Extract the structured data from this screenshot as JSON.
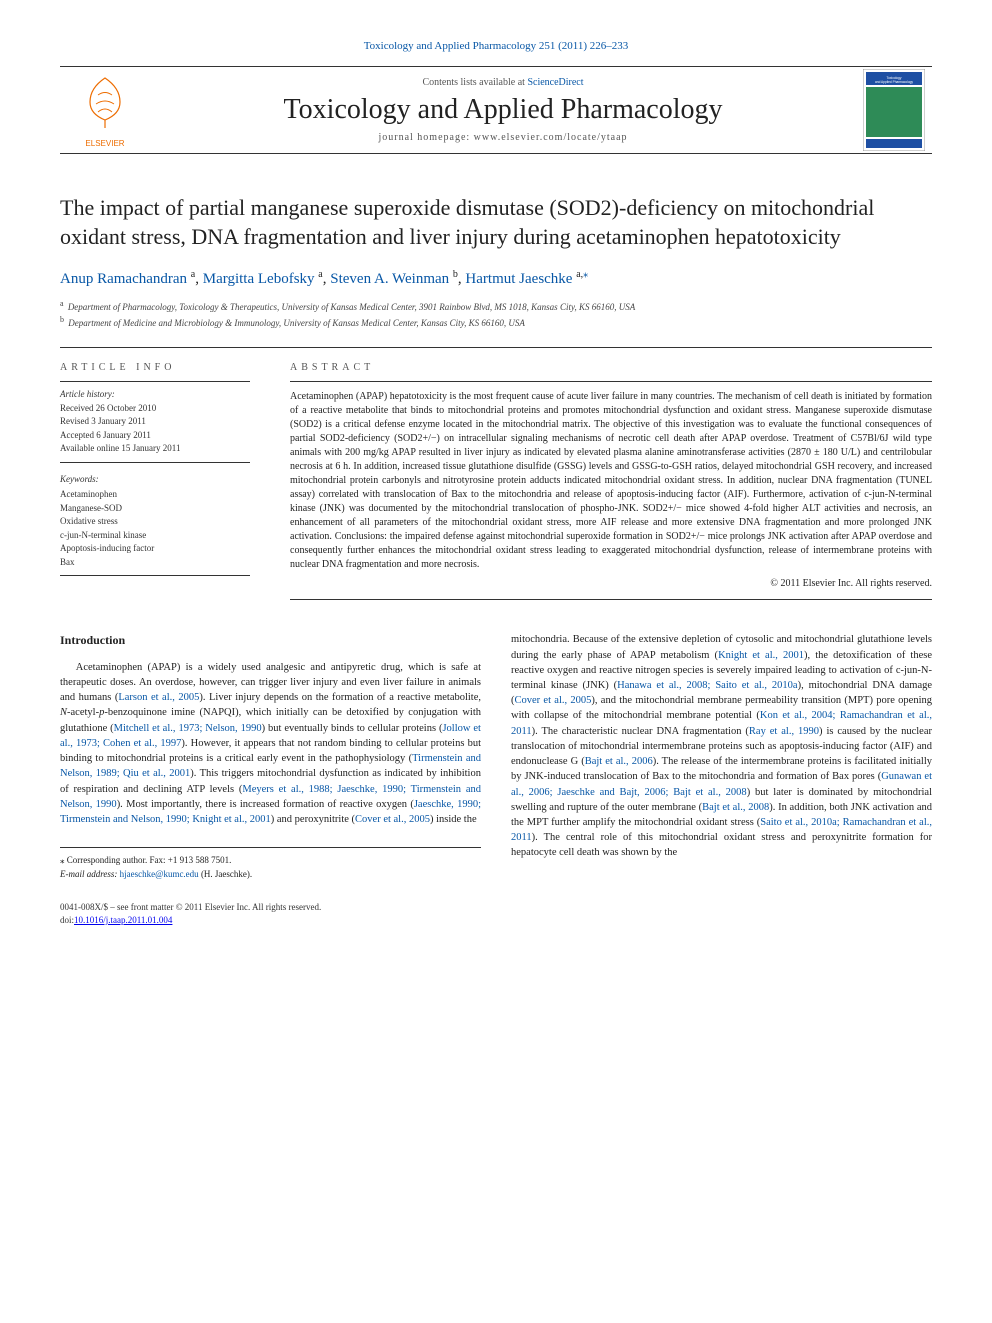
{
  "colors": {
    "link": "#0857a6",
    "text": "#222222",
    "muted": "#555555",
    "rule": "#333333",
    "elsevier_orange": "#ed6c00",
    "cover_blue": "#1e4fa3",
    "cover_green": "#2e8b57",
    "background": "#ffffff"
  },
  "typography": {
    "body_family": "Georgia, 'Times New Roman', serif",
    "title_size_pt": 22,
    "journal_size_pt": 28,
    "abstract_size_pt": 10,
    "body_size_pt": 10.5,
    "small_size_pt": 9
  },
  "top_link": {
    "prefix": "",
    "journal_ref": "Toxicology and Applied Pharmacology 251 (2011) 226–233"
  },
  "header": {
    "contents_label": "Contents lists available at ",
    "contents_target": "ScienceDirect",
    "journal_name": "Toxicology and Applied Pharmacology",
    "homepage_label": "journal homepage: ",
    "homepage_url": "www.elsevier.com/locate/ytaap",
    "publisher": "ELSEVIER"
  },
  "article": {
    "title": "The impact of partial manganese superoxide dismutase (SOD2)-deficiency on mitochondrial oxidant stress, DNA fragmentation and liver injury during acetaminophen hepatotoxicity",
    "authors": [
      {
        "name": "Anup Ramachandran",
        "affil": "a",
        "corresponding": false
      },
      {
        "name": "Margitta Lebofsky",
        "affil": "a",
        "corresponding": false
      },
      {
        "name": "Steven A. Weinman",
        "affil": "b",
        "corresponding": false
      },
      {
        "name": "Hartmut Jaeschke",
        "affil": "a",
        "corresponding": true
      }
    ],
    "affiliations": [
      {
        "key": "a",
        "text": "Department of Pharmacology, Toxicology & Therapeutics, University of Kansas Medical Center, 3901 Rainbow Blvd, MS 1018, Kansas City, KS 66160, USA"
      },
      {
        "key": "b",
        "text": "Department of Medicine and Microbiology & Immunology, University of Kansas Medical Center, Kansas City, KS 66160, USA"
      }
    ]
  },
  "article_info": {
    "label": "ARTICLE INFO",
    "history_label": "Article history:",
    "history": [
      "Received 26 October 2010",
      "Revised 3 January 2011",
      "Accepted 6 January 2011",
      "Available online 15 January 2011"
    ],
    "keywords_label": "Keywords:",
    "keywords": [
      "Acetaminophen",
      "Manganese-SOD",
      "Oxidative stress",
      "c-jun-N-terminal kinase",
      "Apoptosis-inducing factor",
      "Bax"
    ]
  },
  "abstract": {
    "label": "ABSTRACT",
    "text": "Acetaminophen (APAP) hepatotoxicity is the most frequent cause of acute liver failure in many countries. The mechanism of cell death is initiated by formation of a reactive metabolite that binds to mitochondrial proteins and promotes mitochondrial dysfunction and oxidant stress. Manganese superoxide dismutase (SOD2) is a critical defense enzyme located in the mitochondrial matrix. The objective of this investigation was to evaluate the functional consequences of partial SOD2-deficiency (SOD2+/−) on intracellular signaling mechanisms of necrotic cell death after APAP overdose. Treatment of C57Bl/6J wild type animals with 200 mg/kg APAP resulted in liver injury as indicated by elevated plasma alanine aminotransferase activities (2870 ± 180 U/L) and centrilobular necrosis at 6 h. In addition, increased tissue glutathione disulfide (GSSG) levels and GSSG-to-GSH ratios, delayed mitochondrial GSH recovery, and increased mitochondrial protein carbonyls and nitrotyrosine protein adducts indicated mitochondrial oxidant stress. In addition, nuclear DNA fragmentation (TUNEL assay) correlated with translocation of Bax to the mitochondria and release of apoptosis-inducing factor (AIF). Furthermore, activation of c-jun-N-terminal kinase (JNK) was documented by the mitochondrial translocation of phospho-JNK. SOD2+/− mice showed 4-fold higher ALT activities and necrosis, an enhancement of all parameters of the mitochondrial oxidant stress, more AIF release and more extensive DNA fragmentation and more prolonged JNK activation. Conclusions: the impaired defense against mitochondrial superoxide formation in SOD2+/− mice prolongs JNK activation after APAP overdose and consequently further enhances the mitochondrial oxidant stress leading to exaggerated mitochondrial dysfunction, release of intermembrane proteins with nuclear DNA fragmentation and more necrosis.",
    "copyright": "© 2011 Elsevier Inc. All rights reserved."
  },
  "body": {
    "intro_heading": "Introduction",
    "col1_html": "Acetaminophen (APAP) is a widely used analgesic and antipyretic drug, which is safe at therapeutic doses. An overdose, however, can trigger liver injury and even liver failure in animals and humans (<a href='#'>Larson et al., 2005</a>). Liver injury depends on the formation of a reactive metabolite, <em>N</em>-acetyl-<em>p</em>-benzoquinone imine (NAPQI), which initially can be detoxified by conjugation with glutathione (<a href='#'>Mitchell et al., 1973; Nelson, 1990</a>) but eventually binds to cellular proteins (<a href='#'>Jollow et al., 1973; Cohen et al., 1997</a>). However, it appears that not random binding to cellular proteins but binding to mitochondrial proteins is a critical early event in the pathophysiology (<a href='#'>Tirmenstein and Nelson, 1989; Qiu et al., 2001</a>). This triggers mitochondrial dysfunction as indicated by inhibition of respiration and declining ATP levels (<a href='#'>Meyers et al., 1988; Jaeschke, 1990; Tirmenstein and Nelson, 1990</a>). Most importantly, there is increased formation of reactive oxygen (<a href='#'>Jaeschke, 1990; Tirmenstein and Nelson, 1990; Knight et al., 2001</a>) and peroxynitrite (<a href='#'>Cover et al., 2005</a>) inside the",
    "col2_html": "mitochondria. Because of the extensive depletion of cytosolic and mitochondrial glutathione levels during the early phase of APAP metabolism (<a href='#'>Knight et al., 2001</a>), the detoxification of these reactive oxygen and reactive nitrogen species is severely impaired leading to activation of c-jun-N-terminal kinase (JNK) (<a href='#'>Hanawa et al., 2008; Saito et al., 2010a</a>), mitochondrial DNA damage (<a href='#'>Cover et al., 2005</a>), and the mitochondrial membrane permeability transition (MPT) pore opening with collapse of the mitochondrial membrane potential (<a href='#'>Kon et al., 2004; Ramachandran et al., 2011</a>). The characteristic nuclear DNA fragmentation (<a href='#'>Ray et al., 1990</a>) is caused by the nuclear translocation of mitochondrial intermembrane proteins such as apoptosis-inducing factor (AIF) and endonuclease G (<a href='#'>Bajt et al., 2006</a>). The release of the intermembrane proteins is facilitated initially by JNK-induced translocation of Bax to the mitochondria and formation of Bax pores (<a href='#'>Gunawan et al., 2006; Jaeschke and Bajt, 2006; Bajt et al., 2008</a>) but later is dominated by mitochondrial swelling and rupture of the outer membrane (<a href='#'>Bajt et al., 2008</a>). In addition, both JNK activation and the MPT further amplify the mitochondrial oxidant stress (<a href='#'>Saito et al., 2010a; Ramachandran et al., 2011</a>). The central role of this mitochondrial oxidant stress and peroxynitrite formation for hepatocyte cell death was shown by the"
  },
  "correspondence": {
    "line1": "⁎ Corresponding author. Fax: +1 913 588 7501.",
    "email_label": "E-mail address:",
    "email": "hjaeschke@kumc.edu",
    "email_name": "(H. Jaeschke)."
  },
  "footer": {
    "line1": "0041-008X/$ – see front matter © 2011 Elsevier Inc. All rights reserved.",
    "line2": "doi:",
    "doi": "10.1016/j.taap.2011.01.004"
  }
}
